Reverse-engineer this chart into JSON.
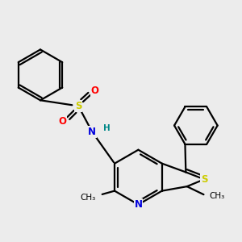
{
  "bg": "#ececec",
  "C": "#000000",
  "S": "#cccc00",
  "N": "#0000dd",
  "O": "#ff0000",
  "H": "#008888",
  "lw": 1.6,
  "fs": 8.5,
  "fs_small": 7.5
}
